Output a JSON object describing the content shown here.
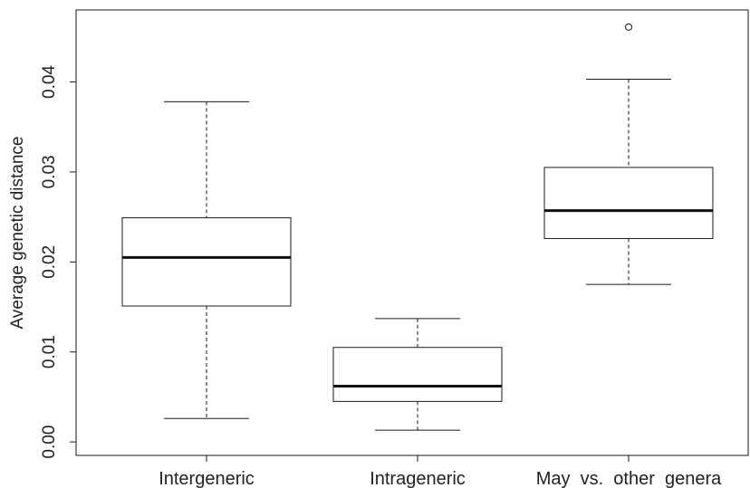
{
  "chart_data": {
    "type": "boxplot",
    "title": "",
    "xlabel": "",
    "ylabel": "Average genetic distance",
    "ylim": [
      -0.0015,
      0.048
    ],
    "yticks": [
      "0.00",
      "0.01",
      "0.02",
      "0.03",
      "0.04"
    ],
    "grid": false,
    "legend": "none",
    "categories": [
      "Intergeneric",
      "Intrageneric",
      "May  vs.  other  genera"
    ],
    "boxes": [
      {
        "category": "Intergeneric",
        "whisker_low": 0.0026,
        "q1": 0.0151,
        "median": 0.0205,
        "q3": 0.0249,
        "whisker_high": 0.0378,
        "outliers": []
      },
      {
        "category": "Intrageneric",
        "whisker_low": 0.0013,
        "q1": 0.0045,
        "median": 0.0062,
        "q3": 0.0105,
        "whisker_high": 0.0137,
        "outliers": []
      },
      {
        "category": "May  vs.  other  genera",
        "whisker_low": 0.0175,
        "q1": 0.0226,
        "median": 0.0257,
        "q3": 0.0305,
        "whisker_high": 0.0403,
        "outliers": [
          0.0461
        ]
      }
    ],
    "colors": {
      "box_fill": "#ffffff",
      "stroke": "#1a1a1a",
      "median": "#111111"
    }
  }
}
